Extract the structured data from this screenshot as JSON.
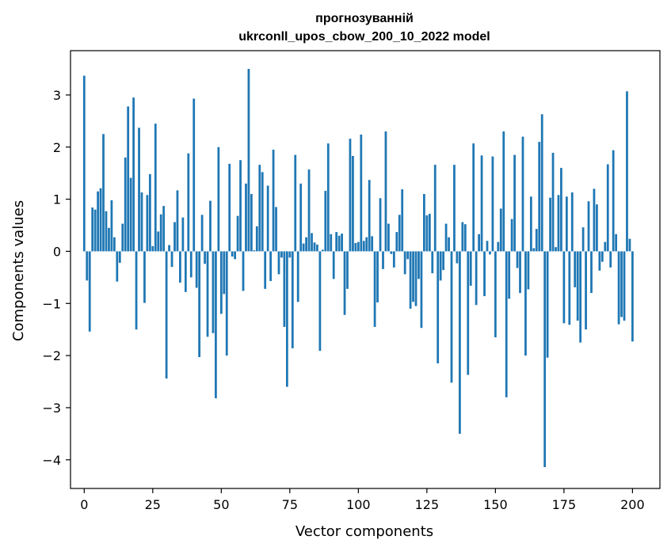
{
  "chart_data": {
    "type": "bar",
    "title": "прогнозуванній",
    "subtitle": "ukrconll_upos_cbow_200_10_2022 model",
    "xlabel": "Vector components",
    "ylabel": "Components values",
    "xlim": [
      -5,
      210
    ],
    "ylim": [
      -4.55,
      3.85
    ],
    "xticks": [
      0,
      25,
      50,
      75,
      100,
      125,
      150,
      175,
      200
    ],
    "yticks": [
      -4,
      -3,
      -2,
      -1,
      0,
      1,
      2,
      3
    ],
    "ytick_labels": [
      "−4",
      "−3",
      "−2",
      "−1",
      "0",
      "1",
      "2",
      "3"
    ],
    "grid": false,
    "bar_color": "#1f77b4",
    "values": [
      3.37,
      -0.56,
      -1.54,
      0.84,
      0.8,
      1.15,
      1.21,
      2.25,
      0.77,
      0.45,
      0.98,
      0.27,
      -0.58,
      -0.22,
      0.53,
      1.8,
      2.78,
      1.41,
      2.95,
      -1.5,
      2.37,
      1.13,
      -0.99,
      1.08,
      1.48,
      0.1,
      2.45,
      0.38,
      0.71,
      0.87,
      -2.44,
      0.12,
      -0.3,
      0.56,
      1.17,
      -0.6,
      0.65,
      -0.78,
      1.88,
      -0.5,
      2.93,
      -0.7,
      -2.03,
      0.7,
      -0.24,
      -1.64,
      0.97,
      -1.57,
      -2.82,
      2.0,
      -1.2,
      -0.82,
      -2.0,
      1.68,
      -0.1,
      -0.15,
      0.68,
      1.75,
      -0.76,
      1.3,
      3.5,
      1.1,
      0.02,
      0.48,
      1.66,
      1.52,
      -0.72,
      1.26,
      -0.57,
      1.95,
      0.85,
      -0.44,
      -0.12,
      -1.45,
      -2.6,
      -0.12,
      -1.86,
      1.85,
      -0.97,
      1.3,
      0.15,
      0.27,
      1.57,
      0.35,
      0.17,
      0.13,
      -1.91,
      0.03,
      1.16,
      2.07,
      0.33,
      -0.53,
      0.37,
      0.3,
      0.34,
      -1.22,
      -0.72,
      2.16,
      1.83,
      0.16,
      0.18,
      2.24,
      0.2,
      0.27,
      1.37,
      0.29,
      -1.45,
      -0.98,
      1.02,
      -0.34,
      2.3,
      0.53,
      -0.05,
      -0.31,
      0.37,
      0.7,
      1.19,
      -0.44,
      -0.15,
      -1.1,
      -0.97,
      -1.05,
      -0.53,
      -1.47,
      1.1,
      0.69,
      0.72,
      -0.42,
      1.66,
      -2.15,
      -0.56,
      -0.36,
      0.53,
      0.27,
      -2.52,
      1.66,
      -0.23,
      -3.5,
      0.56,
      0.52,
      -2.37,
      -0.66,
      2.07,
      -1.03,
      0.33,
      1.84,
      -0.86,
      0.2,
      -0.06,
      1.82,
      -1.65,
      0.18,
      0.82,
      2.3,
      -2.8,
      -0.91,
      0.62,
      1.85,
      -0.32,
      -0.8,
      2.2,
      -2.0,
      -0.73,
      1.05,
      0.06,
      0.43,
      2.1,
      2.63,
      -4.14,
      -2.04,
      1.03,
      1.89,
      0.08,
      1.08,
      1.6,
      -1.38,
      1.05,
      -1.41,
      1.13,
      -0.69,
      -1.33,
      -1.75,
      0.46,
      -1.5,
      0.96,
      -0.8,
      1.2,
      0.9,
      -0.37,
      -0.2,
      0.18,
      1.67,
      -0.31,
      1.94,
      0.33,
      -1.4,
      -1.26,
      -1.33,
      3.07,
      0.24,
      -1.73
    ]
  }
}
